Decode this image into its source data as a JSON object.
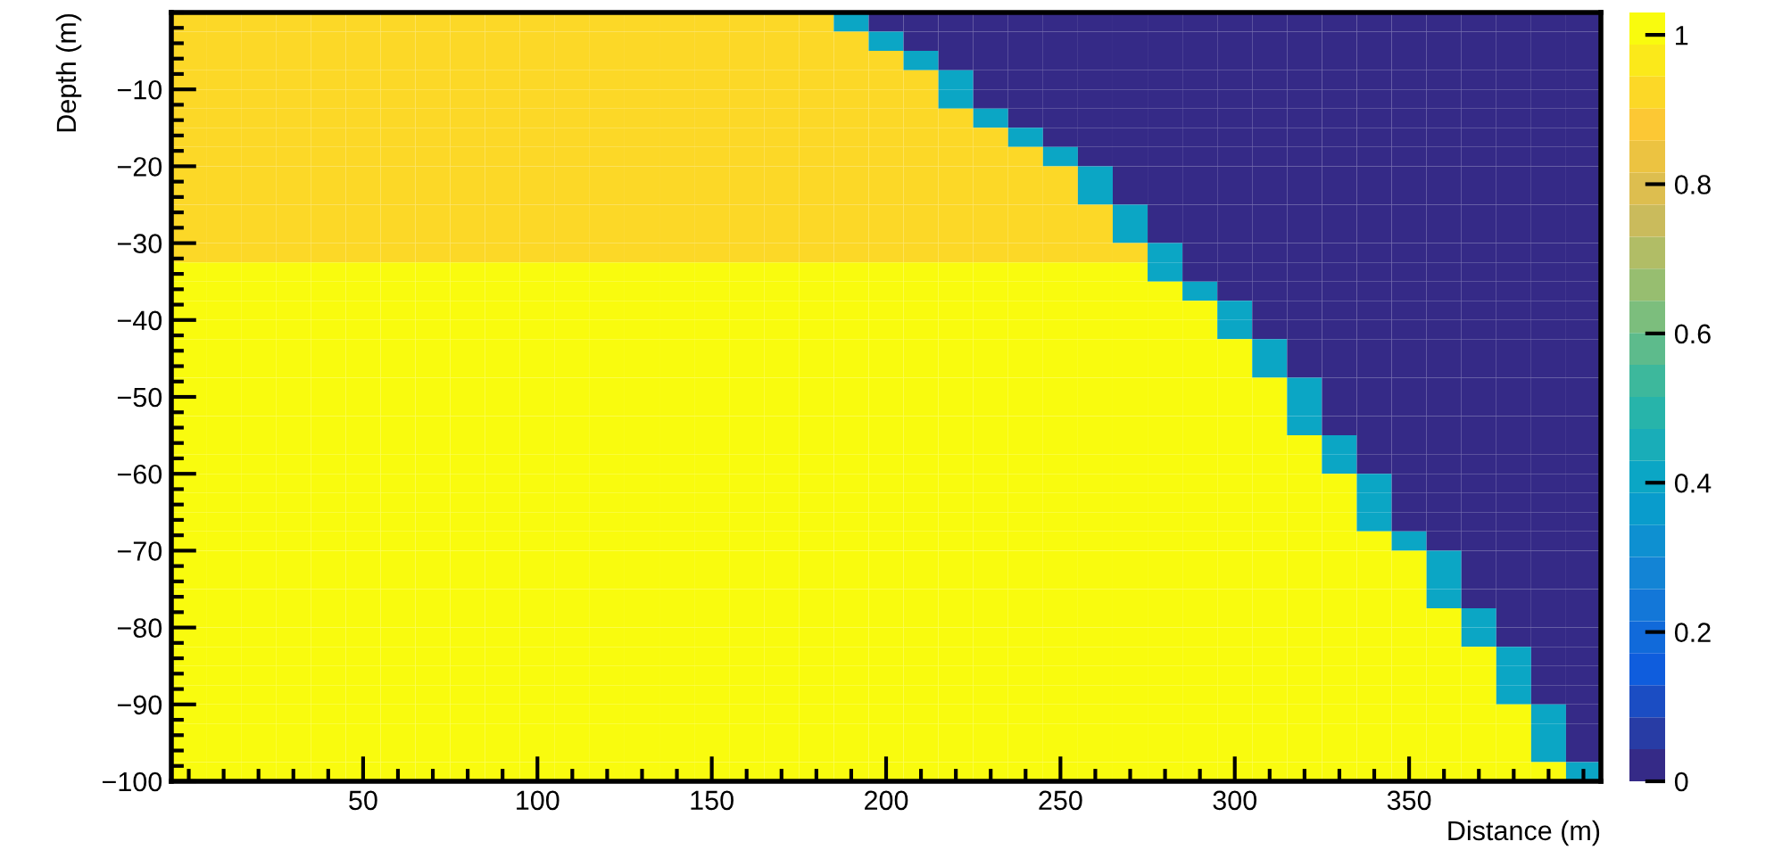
{
  "chart_data": {
    "type": "heatmap",
    "xlabel": "Distance (m)",
    "ylabel": "Depth (m)",
    "x": [
      0,
      10,
      20,
      30,
      40,
      50,
      60,
      70,
      80,
      90,
      100,
      110,
      120,
      130,
      140,
      150,
      160,
      170,
      180,
      190,
      200,
      210,
      220,
      230,
      240,
      250,
      260,
      270,
      280,
      290,
      300,
      310,
      320,
      330,
      340,
      350,
      360,
      370,
      380,
      390,
      400
    ],
    "y": [
      -1.25,
      -3.75,
      -6.25,
      -8.75,
      -11.25,
      -13.75,
      -16.25,
      -18.75,
      -21.25,
      -23.75,
      -26.25,
      -28.75,
      -31.25,
      -33.75,
      -36.25,
      -38.75,
      -41.25,
      -43.75,
      -46.25,
      -48.75,
      -51.25,
      -53.75,
      -56.25,
      -58.75,
      -61.25,
      -63.75,
      -66.25,
      -68.75,
      -71.25,
      -73.75,
      -76.25,
      -78.75,
      -81.25,
      -83.75,
      -86.25,
      -88.75,
      -91.25,
      -93.75,
      -96.25,
      -98.75
    ],
    "cells": [
      [
        0.93,
        0.93,
        0.93,
        0.93,
        0.93,
        0.93,
        0.93,
        0.93,
        0.93,
        0.93,
        0.93,
        0.93,
        0.93,
        0.93,
        0.93,
        0.93,
        0.93,
        0.93,
        0.93,
        0.4,
        0,
        0,
        0,
        0,
        0,
        0,
        0,
        0,
        0,
        0,
        0,
        0,
        0,
        0,
        0,
        0,
        0,
        0,
        0,
        0,
        0
      ],
      [
        0.93,
        0.93,
        0.93,
        0.93,
        0.93,
        0.93,
        0.93,
        0.93,
        0.93,
        0.93,
        0.93,
        0.93,
        0.93,
        0.93,
        0.93,
        0.93,
        0.93,
        0.93,
        0.93,
        0.93,
        0.4,
        0,
        0,
        0,
        0,
        0,
        0,
        0,
        0,
        0,
        0,
        0,
        0,
        0,
        0,
        0,
        0,
        0,
        0,
        0,
        0
      ],
      [
        0.93,
        0.93,
        0.93,
        0.93,
        0.93,
        0.93,
        0.93,
        0.93,
        0.93,
        0.93,
        0.93,
        0.93,
        0.93,
        0.93,
        0.93,
        0.93,
        0.93,
        0.93,
        0.93,
        0.93,
        0.93,
        0.4,
        0,
        0,
        0,
        0,
        0,
        0,
        0,
        0,
        0,
        0,
        0,
        0,
        0,
        0,
        0,
        0,
        0,
        0,
        0
      ],
      [
        0.93,
        0.93,
        0.93,
        0.93,
        0.93,
        0.93,
        0.93,
        0.93,
        0.93,
        0.93,
        0.93,
        0.93,
        0.93,
        0.93,
        0.93,
        0.93,
        0.93,
        0.93,
        0.93,
        0.93,
        0.93,
        0.93,
        0.4,
        0,
        0,
        0,
        0,
        0,
        0,
        0,
        0,
        0,
        0,
        0,
        0,
        0,
        0,
        0,
        0,
        0,
        0
      ],
      [
        0.93,
        0.93,
        0.93,
        0.93,
        0.93,
        0.93,
        0.93,
        0.93,
        0.93,
        0.93,
        0.93,
        0.93,
        0.93,
        0.93,
        0.93,
        0.93,
        0.93,
        0.93,
        0.93,
        0.93,
        0.93,
        0.93,
        0.4,
        0,
        0,
        0,
        0,
        0,
        0,
        0,
        0,
        0,
        0,
        0,
        0,
        0,
        0,
        0,
        0,
        0,
        0
      ],
      [
        0.93,
        0.93,
        0.93,
        0.93,
        0.93,
        0.93,
        0.93,
        0.93,
        0.93,
        0.93,
        0.93,
        0.93,
        0.93,
        0.93,
        0.93,
        0.93,
        0.93,
        0.93,
        0.93,
        0.93,
        0.93,
        0.93,
        0.93,
        0.4,
        0,
        0,
        0,
        0,
        0,
        0,
        0,
        0,
        0,
        0,
        0,
        0,
        0,
        0,
        0,
        0,
        0
      ],
      [
        0.93,
        0.93,
        0.93,
        0.93,
        0.93,
        0.93,
        0.93,
        0.93,
        0.93,
        0.93,
        0.93,
        0.93,
        0.93,
        0.93,
        0.93,
        0.93,
        0.93,
        0.93,
        0.93,
        0.93,
        0.93,
        0.93,
        0.93,
        0.93,
        0.4,
        0,
        0,
        0,
        0,
        0,
        0,
        0,
        0,
        0,
        0,
        0,
        0,
        0,
        0,
        0,
        0
      ],
      [
        0.93,
        0.93,
        0.93,
        0.93,
        0.93,
        0.93,
        0.93,
        0.93,
        0.93,
        0.93,
        0.93,
        0.93,
        0.93,
        0.93,
        0.93,
        0.93,
        0.93,
        0.93,
        0.93,
        0.93,
        0.93,
        0.93,
        0.93,
        0.93,
        0.93,
        0.4,
        0,
        0,
        0,
        0,
        0,
        0,
        0,
        0,
        0,
        0,
        0,
        0,
        0,
        0,
        0
      ],
      [
        0.93,
        0.93,
        0.93,
        0.93,
        0.93,
        0.93,
        0.93,
        0.93,
        0.93,
        0.93,
        0.93,
        0.93,
        0.93,
        0.93,
        0.93,
        0.93,
        0.93,
        0.93,
        0.93,
        0.93,
        0.93,
        0.93,
        0.93,
        0.93,
        0.93,
        0.93,
        0.4,
        0,
        0,
        0,
        0,
        0,
        0,
        0,
        0,
        0,
        0,
        0,
        0,
        0,
        0
      ],
      [
        0.93,
        0.93,
        0.93,
        0.93,
        0.93,
        0.93,
        0.93,
        0.93,
        0.93,
        0.93,
        0.93,
        0.93,
        0.93,
        0.93,
        0.93,
        0.93,
        0.93,
        0.93,
        0.93,
        0.93,
        0.93,
        0.93,
        0.93,
        0.93,
        0.93,
        0.93,
        0.4,
        0,
        0,
        0,
        0,
        0,
        0,
        0,
        0,
        0,
        0,
        0,
        0,
        0,
        0
      ],
      [
        0.93,
        0.93,
        0.93,
        0.93,
        0.93,
        0.93,
        0.93,
        0.93,
        0.93,
        0.93,
        0.93,
        0.93,
        0.93,
        0.93,
        0.93,
        0.93,
        0.93,
        0.93,
        0.93,
        0.93,
        0.93,
        0.93,
        0.93,
        0.93,
        0.93,
        0.93,
        0.93,
        0.4,
        0,
        0,
        0,
        0,
        0,
        0,
        0,
        0,
        0,
        0,
        0,
        0,
        0
      ],
      [
        0.93,
        0.93,
        0.93,
        0.93,
        0.93,
        0.93,
        0.93,
        0.93,
        0.93,
        0.93,
        0.93,
        0.93,
        0.93,
        0.93,
        0.93,
        0.93,
        0.93,
        0.93,
        0.93,
        0.93,
        0.93,
        0.93,
        0.93,
        0.93,
        0.93,
        0.93,
        0.93,
        0.4,
        0,
        0,
        0,
        0,
        0,
        0,
        0,
        0,
        0,
        0,
        0,
        0,
        0
      ],
      [
        0.93,
        0.93,
        0.93,
        0.93,
        0.93,
        0.93,
        0.93,
        0.93,
        0.93,
        0.93,
        0.93,
        0.93,
        0.93,
        0.93,
        0.93,
        0.93,
        0.93,
        0.93,
        0.93,
        0.93,
        0.93,
        0.93,
        0.93,
        0.93,
        0.93,
        0.93,
        0.93,
        0.93,
        0.4,
        0,
        0,
        0,
        0,
        0,
        0,
        0,
        0,
        0,
        0,
        0,
        0
      ],
      [
        1,
        1,
        1,
        1,
        1,
        1,
        1,
        1,
        1,
        1,
        1,
        1,
        1,
        1,
        1,
        1,
        1,
        1,
        1,
        1,
        1,
        1,
        1,
        1,
        1,
        1,
        1,
        1,
        0.4,
        0,
        0,
        0,
        0,
        0,
        0,
        0,
        0,
        0,
        0,
        0,
        0
      ],
      [
        1,
        1,
        1,
        1,
        1,
        1,
        1,
        1,
        1,
        1,
        1,
        1,
        1,
        1,
        1,
        1,
        1,
        1,
        1,
        1,
        1,
        1,
        1,
        1,
        1,
        1,
        1,
        1,
        1,
        0.4,
        0,
        0,
        0,
        0,
        0,
        0,
        0,
        0,
        0,
        0,
        0
      ],
      [
        1,
        1,
        1,
        1,
        1,
        1,
        1,
        1,
        1,
        1,
        1,
        1,
        1,
        1,
        1,
        1,
        1,
        1,
        1,
        1,
        1,
        1,
        1,
        1,
        1,
        1,
        1,
        1,
        1,
        1,
        0.4,
        0,
        0,
        0,
        0,
        0,
        0,
        0,
        0,
        0,
        0
      ],
      [
        1,
        1,
        1,
        1,
        1,
        1,
        1,
        1,
        1,
        1,
        1,
        1,
        1,
        1,
        1,
        1,
        1,
        1,
        1,
        1,
        1,
        1,
        1,
        1,
        1,
        1,
        1,
        1,
        1,
        1,
        0.4,
        0,
        0,
        0,
        0,
        0,
        0,
        0,
        0,
        0,
        0
      ],
      [
        1,
        1,
        1,
        1,
        1,
        1,
        1,
        1,
        1,
        1,
        1,
        1,
        1,
        1,
        1,
        1,
        1,
        1,
        1,
        1,
        1,
        1,
        1,
        1,
        1,
        1,
        1,
        1,
        1,
        1,
        1,
        0.4,
        0,
        0,
        0,
        0,
        0,
        0,
        0,
        0,
        0
      ],
      [
        1,
        1,
        1,
        1,
        1,
        1,
        1,
        1,
        1,
        1,
        1,
        1,
        1,
        1,
        1,
        1,
        1,
        1,
        1,
        1,
        1,
        1,
        1,
        1,
        1,
        1,
        1,
        1,
        1,
        1,
        1,
        0.4,
        0,
        0,
        0,
        0,
        0,
        0,
        0,
        0,
        0
      ],
      [
        1,
        1,
        1,
        1,
        1,
        1,
        1,
        1,
        1,
        1,
        1,
        1,
        1,
        1,
        1,
        1,
        1,
        1,
        1,
        1,
        1,
        1,
        1,
        1,
        1,
        1,
        1,
        1,
        1,
        1,
        1,
        1,
        0.4,
        0,
        0,
        0,
        0,
        0,
        0,
        0,
        0
      ],
      [
        1,
        1,
        1,
        1,
        1,
        1,
        1,
        1,
        1,
        1,
        1,
        1,
        1,
        1,
        1,
        1,
        1,
        1,
        1,
        1,
        1,
        1,
        1,
        1,
        1,
        1,
        1,
        1,
        1,
        1,
        1,
        1,
        0.4,
        0,
        0,
        0,
        0,
        0,
        0,
        0,
        0
      ],
      [
        1,
        1,
        1,
        1,
        1,
        1,
        1,
        1,
        1,
        1,
        1,
        1,
        1,
        1,
        1,
        1,
        1,
        1,
        1,
        1,
        1,
        1,
        1,
        1,
        1,
        1,
        1,
        1,
        1,
        1,
        1,
        1,
        0.4,
        0,
        0,
        0,
        0,
        0,
        0,
        0,
        0
      ],
      [
        1,
        1,
        1,
        1,
        1,
        1,
        1,
        1,
        1,
        1,
        1,
        1,
        1,
        1,
        1,
        1,
        1,
        1,
        1,
        1,
        1,
        1,
        1,
        1,
        1,
        1,
        1,
        1,
        1,
        1,
        1,
        1,
        1,
        0.4,
        0,
        0,
        0,
        0,
        0,
        0,
        0
      ],
      [
        1,
        1,
        1,
        1,
        1,
        1,
        1,
        1,
        1,
        1,
        1,
        1,
        1,
        1,
        1,
        1,
        1,
        1,
        1,
        1,
        1,
        1,
        1,
        1,
        1,
        1,
        1,
        1,
        1,
        1,
        1,
        1,
        1,
        0.4,
        0,
        0,
        0,
        0,
        0,
        0,
        0
      ],
      [
        1,
        1,
        1,
        1,
        1,
        1,
        1,
        1,
        1,
        1,
        1,
        1,
        1,
        1,
        1,
        1,
        1,
        1,
        1,
        1,
        1,
        1,
        1,
        1,
        1,
        1,
        1,
        1,
        1,
        1,
        1,
        1,
        1,
        1,
        0.4,
        0,
        0,
        0,
        0,
        0,
        0
      ],
      [
        1,
        1,
        1,
        1,
        1,
        1,
        1,
        1,
        1,
        1,
        1,
        1,
        1,
        1,
        1,
        1,
        1,
        1,
        1,
        1,
        1,
        1,
        1,
        1,
        1,
        1,
        1,
        1,
        1,
        1,
        1,
        1,
        1,
        1,
        0.4,
        0,
        0,
        0,
        0,
        0,
        0
      ],
      [
        1,
        1,
        1,
        1,
        1,
        1,
        1,
        1,
        1,
        1,
        1,
        1,
        1,
        1,
        1,
        1,
        1,
        1,
        1,
        1,
        1,
        1,
        1,
        1,
        1,
        1,
        1,
        1,
        1,
        1,
        1,
        1,
        1,
        1,
        0.4,
        0,
        0,
        0,
        0,
        0,
        0
      ],
      [
        1,
        1,
        1,
        1,
        1,
        1,
        1,
        1,
        1,
        1,
        1,
        1,
        1,
        1,
        1,
        1,
        1,
        1,
        1,
        1,
        1,
        1,
        1,
        1,
        1,
        1,
        1,
        1,
        1,
        1,
        1,
        1,
        1,
        1,
        1,
        0.4,
        0,
        0,
        0,
        0,
        0
      ],
      [
        1,
        1,
        1,
        1,
        1,
        1,
        1,
        1,
        1,
        1,
        1,
        1,
        1,
        1,
        1,
        1,
        1,
        1,
        1,
        1,
        1,
        1,
        1,
        1,
        1,
        1,
        1,
        1,
        1,
        1,
        1,
        1,
        1,
        1,
        1,
        1,
        0.4,
        0,
        0,
        0,
        0
      ],
      [
        1,
        1,
        1,
        1,
        1,
        1,
        1,
        1,
        1,
        1,
        1,
        1,
        1,
        1,
        1,
        1,
        1,
        1,
        1,
        1,
        1,
        1,
        1,
        1,
        1,
        1,
        1,
        1,
        1,
        1,
        1,
        1,
        1,
        1,
        1,
        1,
        0.4,
        0,
        0,
        0,
        0
      ],
      [
        1,
        1,
        1,
        1,
        1,
        1,
        1,
        1,
        1,
        1,
        1,
        1,
        1,
        1,
        1,
        1,
        1,
        1,
        1,
        1,
        1,
        1,
        1,
        1,
        1,
        1,
        1,
        1,
        1,
        1,
        1,
        1,
        1,
        1,
        1,
        1,
        0.4,
        0,
        0,
        0,
        0
      ],
      [
        1,
        1,
        1,
        1,
        1,
        1,
        1,
        1,
        1,
        1,
        1,
        1,
        1,
        1,
        1,
        1,
        1,
        1,
        1,
        1,
        1,
        1,
        1,
        1,
        1,
        1,
        1,
        1,
        1,
        1,
        1,
        1,
        1,
        1,
        1,
        1,
        1,
        0.4,
        0,
        0,
        0
      ],
      [
        1,
        1,
        1,
        1,
        1,
        1,
        1,
        1,
        1,
        1,
        1,
        1,
        1,
        1,
        1,
        1,
        1,
        1,
        1,
        1,
        1,
        1,
        1,
        1,
        1,
        1,
        1,
        1,
        1,
        1,
        1,
        1,
        1,
        1,
        1,
        1,
        1,
        0.4,
        0,
        0,
        0
      ],
      [
        1,
        1,
        1,
        1,
        1,
        1,
        1,
        1,
        1,
        1,
        1,
        1,
        1,
        1,
        1,
        1,
        1,
        1,
        1,
        1,
        1,
        1,
        1,
        1,
        1,
        1,
        1,
        1,
        1,
        1,
        1,
        1,
        1,
        1,
        1,
        1,
        1,
        1,
        0.4,
        0,
        0
      ],
      [
        1,
        1,
        1,
        1,
        1,
        1,
        1,
        1,
        1,
        1,
        1,
        1,
        1,
        1,
        1,
        1,
        1,
        1,
        1,
        1,
        1,
        1,
        1,
        1,
        1,
        1,
        1,
        1,
        1,
        1,
        1,
        1,
        1,
        1,
        1,
        1,
        1,
        1,
        0.4,
        0,
        0
      ],
      [
        1,
        1,
        1,
        1,
        1,
        1,
        1,
        1,
        1,
        1,
        1,
        1,
        1,
        1,
        1,
        1,
        1,
        1,
        1,
        1,
        1,
        1,
        1,
        1,
        1,
        1,
        1,
        1,
        1,
        1,
        1,
        1,
        1,
        1,
        1,
        1,
        1,
        1,
        0.4,
        0,
        0
      ],
      [
        1,
        1,
        1,
        1,
        1,
        1,
        1,
        1,
        1,
        1,
        1,
        1,
        1,
        1,
        1,
        1,
        1,
        1,
        1,
        1,
        1,
        1,
        1,
        1,
        1,
        1,
        1,
        1,
        1,
        1,
        1,
        1,
        1,
        1,
        1,
        1,
        1,
        1,
        1,
        0.4,
        0
      ],
      [
        1,
        1,
        1,
        1,
        1,
        1,
        1,
        1,
        1,
        1,
        1,
        1,
        1,
        1,
        1,
        1,
        1,
        1,
        1,
        1,
        1,
        1,
        1,
        1,
        1,
        1,
        1,
        1,
        1,
        1,
        1,
        1,
        1,
        1,
        1,
        1,
        1,
        1,
        1,
        0.4,
        0
      ],
      [
        1,
        1,
        1,
        1,
        1,
        1,
        1,
        1,
        1,
        1,
        1,
        1,
        1,
        1,
        1,
        1,
        1,
        1,
        1,
        1,
        1,
        1,
        1,
        1,
        1,
        1,
        1,
        1,
        1,
        1,
        1,
        1,
        1,
        1,
        1,
        1,
        1,
        1,
        1,
        0.4,
        0
      ],
      [
        1,
        1,
        1,
        1,
        1,
        1,
        1,
        1,
        1,
        1,
        1,
        1,
        1,
        1,
        1,
        1,
        1,
        1,
        1,
        1,
        1,
        1,
        1,
        1,
        1,
        1,
        1,
        1,
        1,
        1,
        1,
        1,
        1,
        1,
        1,
        1,
        1,
        1,
        1,
        1,
        0.4
      ]
    ],
    "xlim": [
      -5,
      405
    ],
    "ylim": [
      -100,
      0
    ],
    "xticks": [
      50,
      100,
      150,
      200,
      250,
      300,
      350
    ],
    "yticks": [
      -100,
      -90,
      -80,
      -70,
      -60,
      -50,
      -40,
      -30,
      -20,
      -10
    ],
    "clim": [
      0,
      1.03
    ],
    "cticks": [
      0,
      0.2,
      0.4,
      0.6,
      0.8,
      1
    ]
  }
}
